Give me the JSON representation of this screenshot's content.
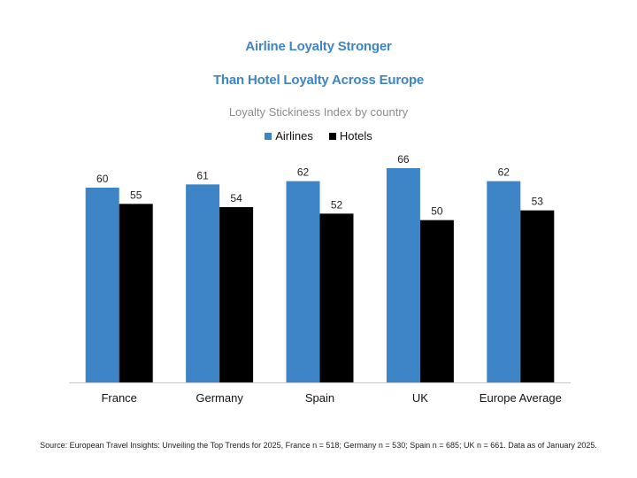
{
  "chart_data": {
    "type": "bar",
    "title": "Airline Loyalty Stronger Than Hotel Loyalty Across Europe",
    "title_lines": [
      "Airline Loyalty Stronger",
      "Than Hotel Loyalty Across Europe"
    ],
    "subtitle": "Loyalty Stickiness Index by country",
    "categories": [
      "France",
      "Germany",
      "Spain",
      "UK",
      "Europe Average"
    ],
    "series": [
      {
        "name": "Airlines",
        "color": "#3d85c6",
        "values": [
          60,
          61,
          62,
          66,
          62
        ]
      },
      {
        "name": "Hotels",
        "color": "#000000",
        "values": [
          55,
          54,
          52,
          50,
          53
        ]
      }
    ],
    "ylim": [
      0,
      70
    ],
    "grid": false,
    "legend_position": "top-center",
    "data_labels": true,
    "source": "Source: European Travel Insights: Unveiling the Top Trends for 2025, France n = 518; Germany n = 530; Spain n = 685; UK n = 661. Data as of January 2025."
  }
}
